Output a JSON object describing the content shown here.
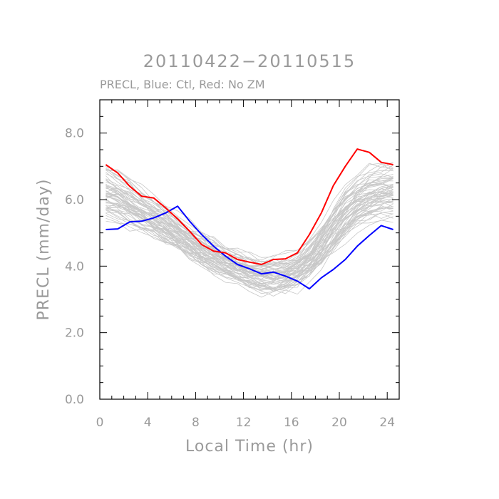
{
  "chart_data": {
    "type": "line",
    "title": "20110422−20110515",
    "subtitle": "PRECL, Blue: Ctl, Red: No ZM",
    "xlabel": "Local Time (hr)",
    "ylabel": "PRECL (mm/day)",
    "xlim": [
      0,
      25
    ],
    "ylim": [
      0,
      9
    ],
    "xticks": [
      0,
      4,
      8,
      12,
      16,
      20,
      24
    ],
    "xtick_labels": [
      "0",
      "4",
      "8",
      "12",
      "16",
      "20",
      "24"
    ],
    "yticks": [
      0,
      2,
      4,
      6,
      8
    ],
    "ytick_labels": [
      "0.0",
      "2.0",
      "4.0",
      "6.0",
      "8.0"
    ],
    "x": [
      0.5,
      1.5,
      2.5,
      3.5,
      4.5,
      5.5,
      6.5,
      7.5,
      8.5,
      9.5,
      10.5,
      11.5,
      12.5,
      13.5,
      14.5,
      15.5,
      16.5,
      17.5,
      18.5,
      19.5,
      20.5,
      21.5,
      22.5,
      23.5,
      24.5
    ],
    "series": [
      {
        "name": "Ctl",
        "color": "#0000ff",
        "values": [
          5.1,
          5.12,
          5.33,
          5.35,
          5.45,
          5.6,
          5.8,
          5.35,
          4.95,
          4.6,
          4.3,
          4.05,
          3.92,
          3.77,
          3.82,
          3.7,
          3.55,
          3.32,
          3.65,
          3.9,
          4.2,
          4.6,
          4.92,
          5.22,
          5.1
        ]
      },
      {
        "name": "No ZM",
        "color": "#ff0000",
        "values": [
          7.05,
          6.8,
          6.4,
          6.1,
          6.05,
          5.75,
          5.42,
          5.05,
          4.65,
          4.45,
          4.4,
          4.2,
          4.12,
          4.05,
          4.2,
          4.22,
          4.4,
          4.95,
          5.6,
          6.42,
          7.0,
          7.52,
          7.42,
          7.12,
          7.05
        ]
      }
    ],
    "ensemble": {
      "name": "ensemble members (gray)",
      "color": "#c8c8c8",
      "count": 60,
      "mean_values": [
        6.3,
        6.15,
        5.95,
        5.7,
        5.48,
        5.25,
        5.0,
        4.75,
        4.5,
        4.28,
        4.1,
        3.95,
        3.82,
        3.72,
        3.68,
        3.72,
        3.85,
        4.12,
        4.6,
        5.15,
        5.65,
        6.0,
        6.2,
        6.3,
        6.3
      ]
    }
  }
}
